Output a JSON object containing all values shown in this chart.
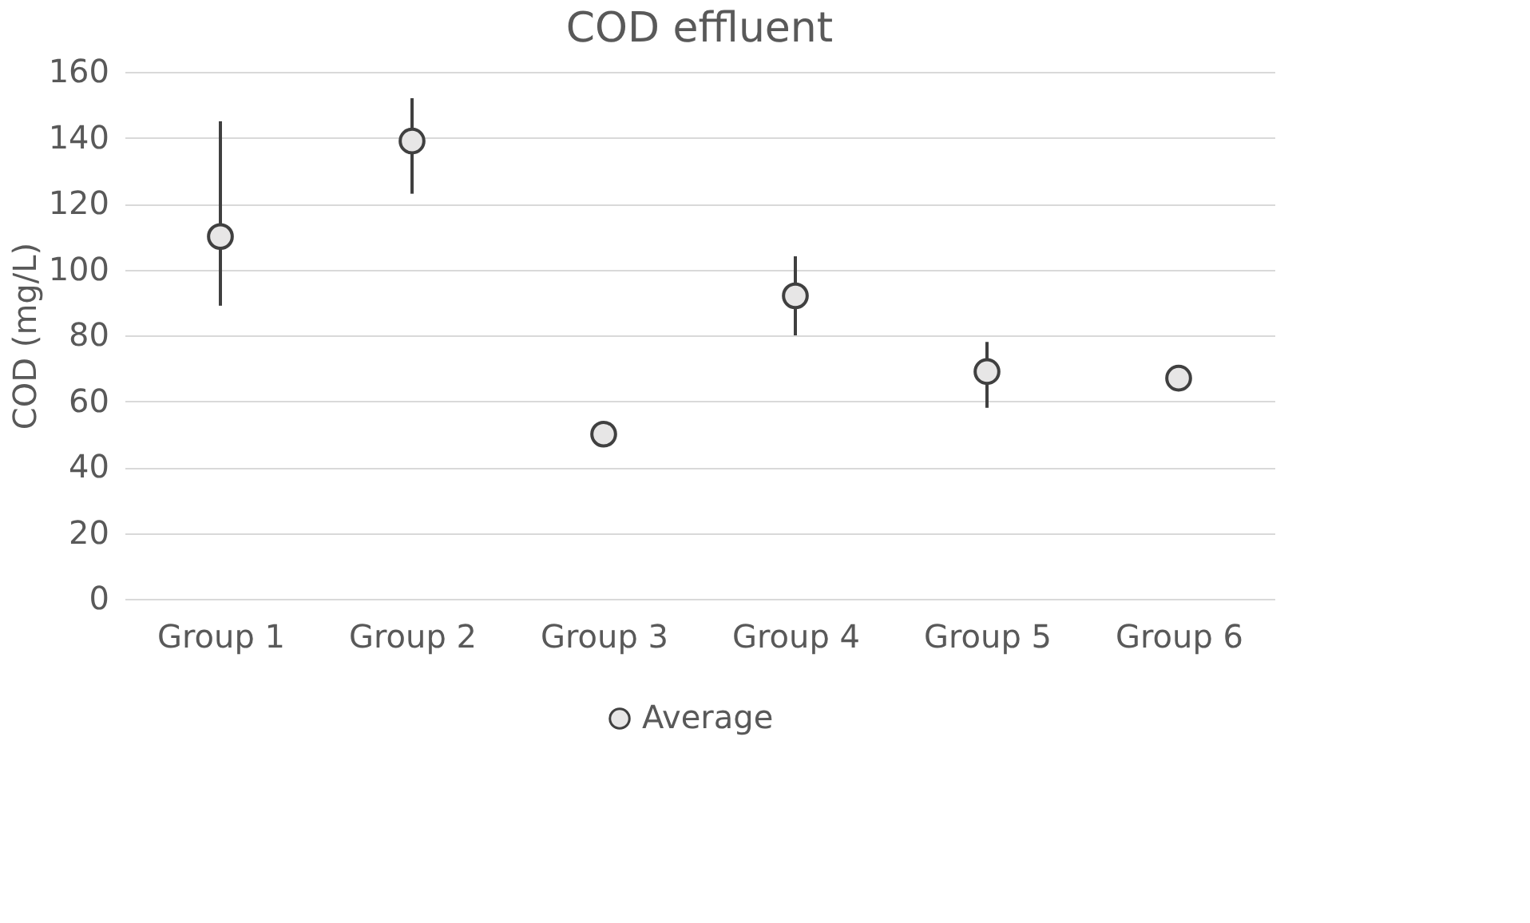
{
  "chart_data": {
    "type": "scatter",
    "title": "COD effluent",
    "ylabel": "COD (mg/L)",
    "categories": [
      "Group 1",
      "Group 2",
      "Group 3",
      "Group 4",
      "Group 5",
      "Group 6"
    ],
    "series": [
      {
        "name": "Average",
        "color": "#e7e6e6",
        "values": [
          110,
          139,
          50,
          92,
          69,
          67
        ],
        "errors": [
          [
            89,
            145
          ],
          [
            123,
            152
          ],
          null,
          [
            80,
            104
          ],
          [
            58,
            78
          ],
          null
        ]
      }
    ],
    "ylim": [
      0,
      160
    ],
    "yticks": [
      0,
      20,
      40,
      60,
      80,
      100,
      120,
      140,
      160
    ],
    "grid": "y",
    "legend": "bottom",
    "marker": "circle"
  }
}
